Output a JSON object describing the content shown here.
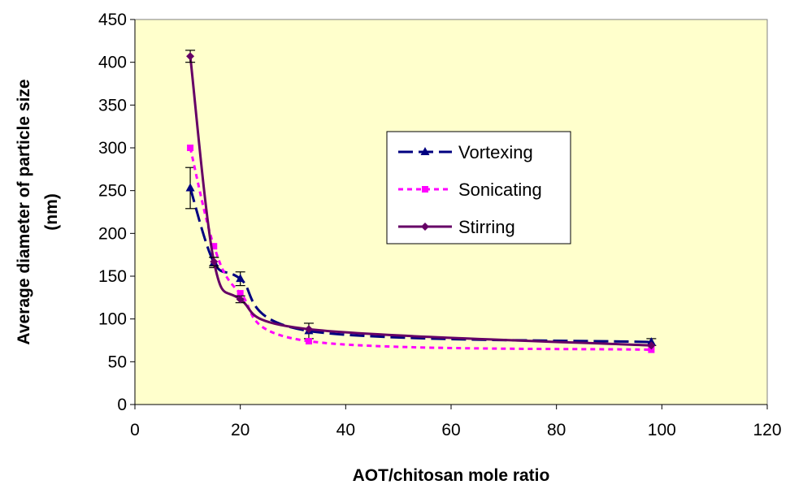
{
  "chart_data": {
    "type": "line",
    "title": "",
    "xlabel": "AOT/chitosan mole ratio",
    "ylabel_line1": "Average diameter of particle size",
    "ylabel_line2": "(nm)",
    "xlim": [
      0,
      120
    ],
    "ylim": [
      0,
      450
    ],
    "xticks": [
      0,
      20,
      40,
      60,
      80,
      100,
      120
    ],
    "yticks": [
      0,
      50,
      100,
      150,
      200,
      250,
      300,
      350,
      400,
      450
    ],
    "grid": false,
    "legend_position": "center-right",
    "plot_background": "#ffffcc",
    "series": [
      {
        "name": "Vortexing",
        "color": "#000080",
        "dash": "long-dash",
        "marker": "triangle",
        "x": [
          10.5,
          15,
          20,
          33,
          98
        ],
        "y": [
          253,
          166,
          147,
          86,
          73
        ],
        "errors": [
          24,
          6,
          8,
          9,
          4
        ]
      },
      {
        "name": "Sonicating",
        "color": "#ff00ff",
        "dash": "dotted",
        "marker": "square",
        "x": [
          10.5,
          15,
          20,
          33,
          98
        ],
        "y": [
          300,
          185,
          130,
          74,
          64
        ],
        "errors": [
          0,
          0,
          0,
          0,
          0
        ]
      },
      {
        "name": "Stirring",
        "color": "#660066",
        "dash": "solid",
        "marker": "diamond",
        "x": [
          10.5,
          15,
          20,
          33,
          98
        ],
        "y": [
          407,
          167,
          123,
          88,
          69
        ],
        "errors": [
          7,
          5,
          4,
          0,
          0
        ]
      }
    ]
  }
}
